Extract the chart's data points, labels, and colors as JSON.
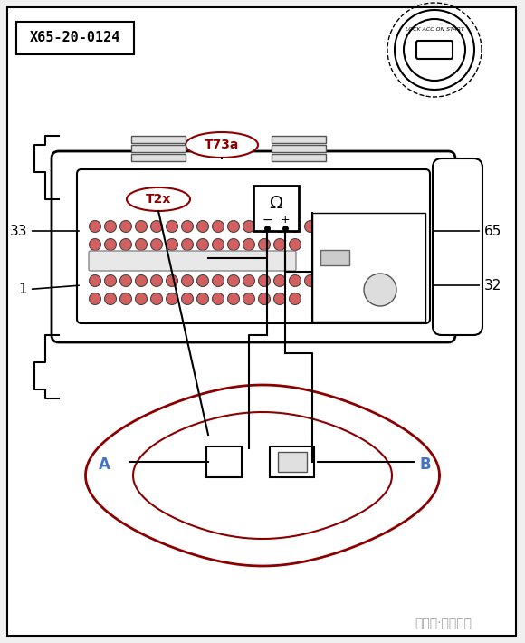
{
  "bg_color": "#f0f0f0",
  "border_color": "#000000",
  "title_box": "X65-20-0124",
  "connector_label": "T73a",
  "injector_label": "T2x",
  "pin_labels": [
    "33",
    "1",
    "65",
    "32"
  ],
  "terminal_labels": [
    "A",
    "B"
  ],
  "ignition_text": "LOCK ACC ON START",
  "watermark": "中华网·汽车频道",
  "line_color": "#000000",
  "dark_red": "#8B0000",
  "blue_label_color": "#4472C4"
}
